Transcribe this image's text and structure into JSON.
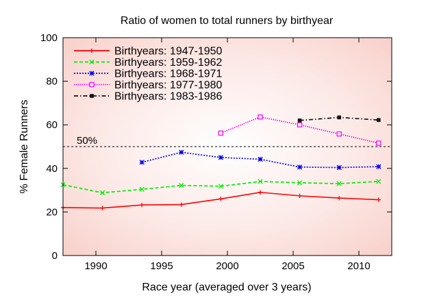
{
  "chart_data": {
    "type": "line",
    "title": "Ratio of women to total runners by birthyear",
    "xlabel": "Race year (averaged over 3 years)",
    "ylabel": "% Female Runners",
    "xlim": [
      1987.5,
      2012.5
    ],
    "ylim": [
      0,
      100
    ],
    "xticks": [
      1990,
      1995,
      2000,
      2005,
      2010
    ],
    "yticks": [
      0,
      20,
      40,
      60,
      80,
      100
    ],
    "grid": false,
    "legend_position": "top-left",
    "reference_line": {
      "y": 50,
      "label": "50%",
      "style": "dashed",
      "color": "#000000"
    },
    "series": [
      {
        "name": "Birthyears: 1947-1950",
        "color": "#ff0000",
        "dash": "solid",
        "marker": "plus",
        "x": [
          1987.5,
          1990.5,
          1993.5,
          1996.5,
          1999.5,
          2002.5,
          2005.5,
          2008.5,
          2011.5
        ],
        "y": [
          22,
          21.8,
          23.2,
          23.4,
          26,
          29,
          27.4,
          26.4,
          25.6
        ]
      },
      {
        "name": "Birthyears: 1959-1962",
        "color": "#00ee00",
        "dash": "dashed",
        "marker": "x",
        "x": [
          1987.5,
          1990.5,
          1993.5,
          1996.5,
          1999.5,
          2002.5,
          2005.5,
          2008.5,
          2011.5
        ],
        "y": [
          32.5,
          28.8,
          30.4,
          32.2,
          31.8,
          34,
          33.4,
          33,
          34
        ]
      },
      {
        "name": "Birthyears: 1968-1971",
        "color": "#0000ee",
        "dash": "dotted",
        "marker": "star",
        "x": [
          1993.5,
          1996.5,
          1999.5,
          2002.5,
          2005.5,
          2008.5,
          2011.5
        ],
        "y": [
          42.8,
          47.4,
          45,
          44.2,
          40.6,
          40.4,
          40.8
        ]
      },
      {
        "name": "Birthyears: 1977-1980",
        "color": "#ff00ff",
        "dash": "dotted-fine",
        "marker": "square-open",
        "x": [
          1999.5,
          2002.5,
          2005.5,
          2008.5,
          2011.5
        ],
        "y": [
          56.2,
          63.6,
          60,
          55.8,
          51.6
        ]
      },
      {
        "name": "Birthyears: 1983-1986",
        "color": "#111111",
        "dash": "dashdot",
        "marker": "square-filled",
        "x": [
          2005.5,
          2008.5,
          2011.5
        ],
        "y": [
          62,
          63.4,
          62.2
        ]
      }
    ]
  }
}
